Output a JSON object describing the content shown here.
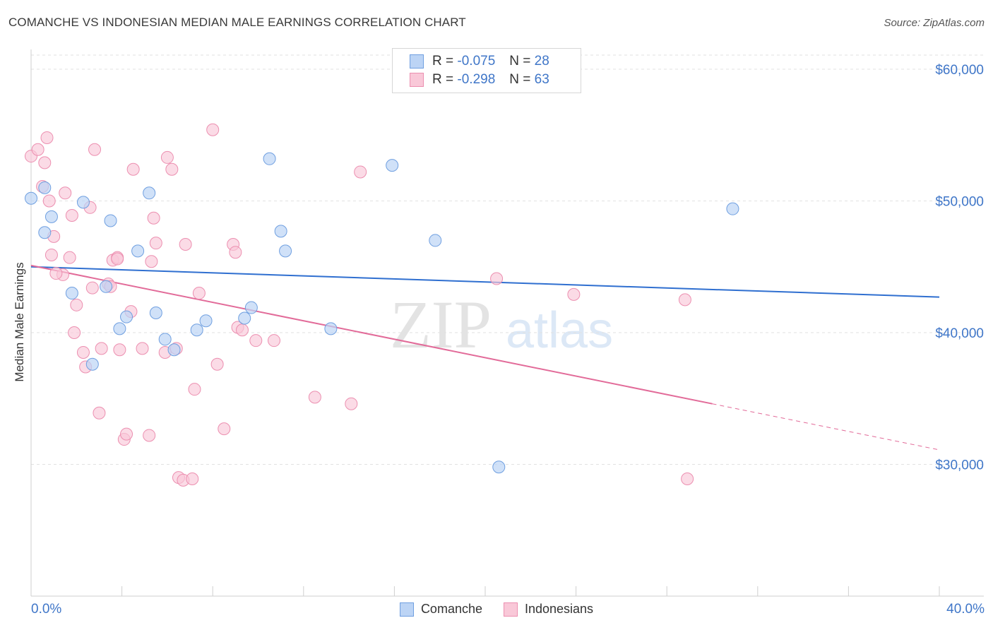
{
  "title": "COMANCHE VS INDONESIAN MEDIAN MALE EARNINGS CORRELATION CHART",
  "source": "Source: ZipAtlas.com",
  "colors": {
    "comanche_fill": "#bcd4f5",
    "comanche_stroke": "#6f9fe0",
    "comanche_line": "#2f6fd0",
    "indonesian_fill": "#f9c8d8",
    "indonesian_stroke": "#ec8fb0",
    "indonesian_line": "#e26b99",
    "axis_text": "#3f76c8"
  },
  "legend": {
    "rows": [
      {
        "r_label": "R =",
        "r_value": "-0.075",
        "n_label": "N =",
        "n_value": "28"
      },
      {
        "r_label": "R =",
        "r_value": "-0.298",
        "n_label": "N =",
        "n_value": "63"
      }
    ]
  },
  "bottom_legend": {
    "comanche": "Comanche",
    "indonesians": "Indonesians"
  },
  "x_axis": {
    "min_label": "0.0%",
    "max_label": "40.0%"
  },
  "watermark": {
    "zip": "ZIP",
    "atlas": "atlas"
  },
  "chart_data": {
    "type": "scatter",
    "title": "COMANCHE VS INDONESIAN MEDIAN MALE EARNINGS CORRELATION CHART",
    "xlabel": "",
    "ylabel": "Median Male Earnings",
    "xlim": [
      0,
      40
    ],
    "ylim": [
      20000,
      61500
    ],
    "y_ticks": [
      {
        "value": 30000,
        "label": "$30,000"
      },
      {
        "value": 40000,
        "label": "$40,000"
      },
      {
        "value": 50000,
        "label": "$50,000"
      },
      {
        "value": 60000,
        "label": "$60,000"
      }
    ],
    "grid": "horizontal dashed",
    "series": [
      {
        "name": "Comanche",
        "points": [
          [
            0.0,
            50200
          ],
          [
            0.6,
            51000
          ],
          [
            0.9,
            48800
          ],
          [
            0.6,
            47600
          ],
          [
            2.3,
            49900
          ],
          [
            3.5,
            48500
          ],
          [
            5.2,
            50600
          ],
          [
            4.7,
            46200
          ],
          [
            1.8,
            43000
          ],
          [
            3.3,
            43500
          ],
          [
            4.2,
            41200
          ],
          [
            5.5,
            41500
          ],
          [
            3.9,
            40300
          ],
          [
            5.9,
            39500
          ],
          [
            6.3,
            38700
          ],
          [
            2.7,
            37600
          ],
          [
            7.3,
            40200
          ],
          [
            7.7,
            40900
          ],
          [
            9.7,
            41900
          ],
          [
            9.4,
            41100
          ],
          [
            10.5,
            53200
          ],
          [
            11.0,
            47700
          ],
          [
            11.2,
            46200
          ],
          [
            13.2,
            40300
          ],
          [
            15.9,
            52700
          ],
          [
            17.8,
            47000
          ],
          [
            30.9,
            49400
          ],
          [
            20.6,
            29800
          ]
        ],
        "trend": {
          "x": [
            0,
            40
          ],
          "y": [
            45000,
            42700
          ]
        }
      },
      {
        "name": "Indonesians",
        "points": [
          [
            0.0,
            53400
          ],
          [
            0.3,
            53900
          ],
          [
            0.5,
            51100
          ],
          [
            0.6,
            52900
          ],
          [
            0.7,
            54800
          ],
          [
            0.8,
            50000
          ],
          [
            1.0,
            47300
          ],
          [
            0.9,
            45900
          ],
          [
            1.4,
            44400
          ],
          [
            1.5,
            50600
          ],
          [
            1.8,
            48900
          ],
          [
            1.7,
            45700
          ],
          [
            2.0,
            42100
          ],
          [
            1.9,
            40000
          ],
          [
            2.3,
            38500
          ],
          [
            2.4,
            37400
          ],
          [
            2.6,
            49500
          ],
          [
            2.7,
            43400
          ],
          [
            2.8,
            53900
          ],
          [
            3.0,
            33900
          ],
          [
            3.1,
            38800
          ],
          [
            3.4,
            43700
          ],
          [
            3.6,
            45500
          ],
          [
            3.8,
            45700
          ],
          [
            3.9,
            38700
          ],
          [
            4.1,
            31900
          ],
          [
            4.2,
            32300
          ],
          [
            4.5,
            52400
          ],
          [
            4.4,
            41600
          ],
          [
            4.9,
            38800
          ],
          [
            5.2,
            32200
          ],
          [
            5.3,
            45400
          ],
          [
            5.4,
            48700
          ],
          [
            5.5,
            46800
          ],
          [
            5.9,
            38500
          ],
          [
            6.0,
            53300
          ],
          [
            6.2,
            52400
          ],
          [
            6.4,
            38800
          ],
          [
            6.5,
            29000
          ],
          [
            6.8,
            46700
          ],
          [
            6.7,
            28800
          ],
          [
            7.1,
            28900
          ],
          [
            7.2,
            35700
          ],
          [
            7.4,
            43000
          ],
          [
            8.0,
            55400
          ],
          [
            8.2,
            37600
          ],
          [
            8.5,
            32700
          ],
          [
            8.9,
            46700
          ],
          [
            9.0,
            46100
          ],
          [
            9.1,
            40400
          ],
          [
            9.3,
            40200
          ],
          [
            9.9,
            39400
          ],
          [
            10.7,
            39400
          ],
          [
            12.5,
            35100
          ],
          [
            14.1,
            34600
          ],
          [
            14.5,
            52200
          ],
          [
            20.5,
            44100
          ],
          [
            23.9,
            42900
          ],
          [
            28.8,
            42500
          ],
          [
            28.9,
            28900
          ],
          [
            1.1,
            44500
          ],
          [
            3.5,
            43500
          ],
          [
            3.8,
            45600
          ]
        ],
        "trend": {
          "x": [
            0,
            30
          ],
          "y": [
            45100,
            34600
          ]
        },
        "trend_dashed": {
          "x": [
            30,
            40
          ],
          "y": [
            34600,
            31100
          ]
        }
      }
    ]
  }
}
